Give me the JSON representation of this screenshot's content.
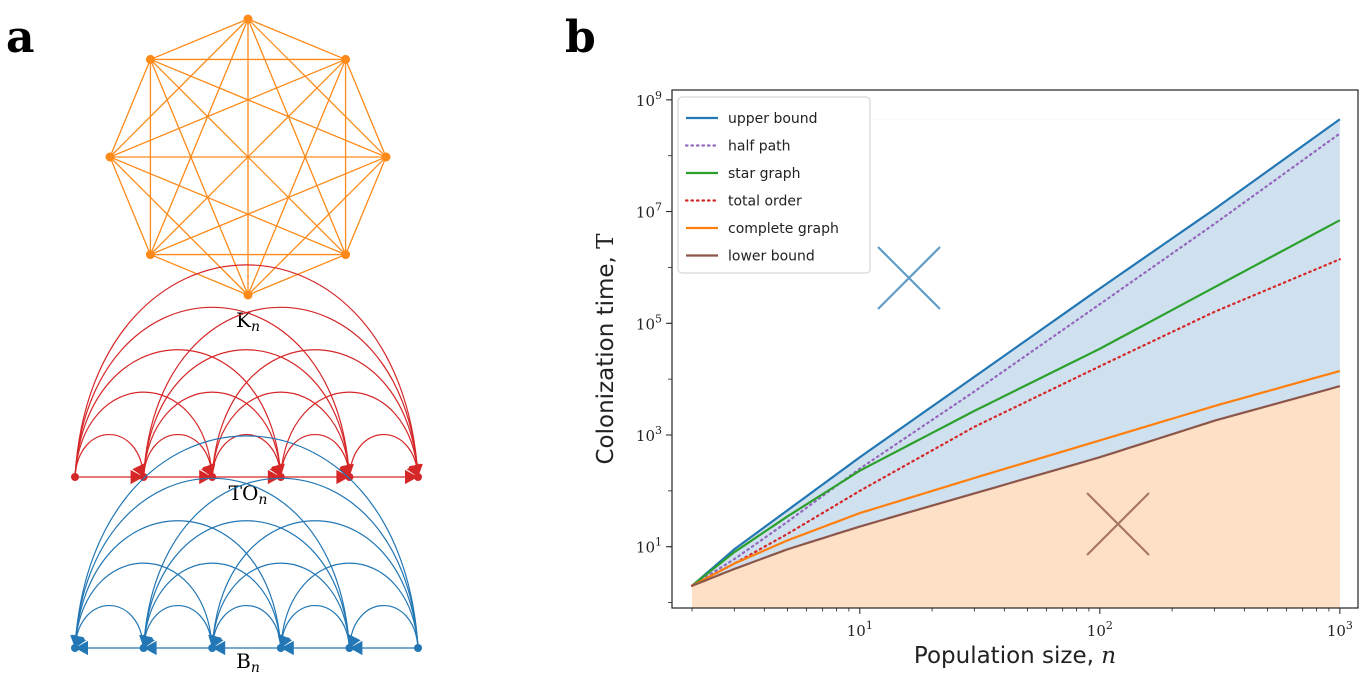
{
  "panels": {
    "a": "a",
    "b": "b"
  },
  "colors": {
    "complete": "#ff8a1a",
    "total_order": "#d62728",
    "burst": "#2277b4",
    "upper_fill": "#cfe1ef",
    "lower_fill": "#fde0c5",
    "upper_cross": "#5d9bc9",
    "lower_cross": "#a57866"
  },
  "graphs": [
    {
      "key": "complete",
      "label_main": "K",
      "label_sub": "n",
      "nodes": 8
    },
    {
      "key": "total_order",
      "label_main": "TO",
      "label_sub": "n",
      "nodes": 6
    },
    {
      "key": "burst",
      "label_main": "B",
      "label_sub": "n",
      "nodes": 6
    }
  ],
  "chart_data": {
    "type": "line",
    "xscale": "log",
    "yscale": "log",
    "xlim": [
      1.65,
      1190
    ],
    "ylim": [
      0.8,
      1500000000
    ],
    "xlabel_main": "Population size, ",
    "xlabel_var": "n",
    "ylabel_main": "Colonization time, ",
    "ylabel_var": "T",
    "x_ticks": [
      {
        "value": 10,
        "exp": "1"
      },
      {
        "value": 100,
        "exp": "2"
      },
      {
        "value": 1000,
        "exp": "3"
      }
    ],
    "y_ticks": [
      {
        "value": 10,
        "exp": "1"
      },
      {
        "value": 1000,
        "exp": "3"
      },
      {
        "value": 100000,
        "exp": "5"
      },
      {
        "value": 10000000,
        "exp": "7"
      },
      {
        "value": 1000000000,
        "exp": "9"
      }
    ],
    "tick_base": "10",
    "legend_position": "upper-left",
    "series": [
      {
        "name": "upper bound",
        "color": "#2277b4",
        "dash": "solid",
        "x": [
          2,
          3,
          5,
          10,
          30,
          100,
          300,
          1000
        ],
        "y": [
          2,
          9,
          45,
          400,
          11000,
          420000,
          11000000,
          450000000
        ]
      },
      {
        "name": "half path",
        "color": "#9467bd",
        "dash": "dotted",
        "x": [
          2,
          3,
          5,
          10,
          30,
          100,
          300,
          1000
        ],
        "y": [
          2,
          6,
          28,
          250,
          6000,
          220000,
          6000000,
          250000000
        ]
      },
      {
        "name": "star graph",
        "color": "#2ca02c",
        "dash": "solid",
        "x": [
          2,
          3,
          5,
          10,
          30,
          100,
          300,
          1000
        ],
        "y": [
          2,
          8,
          35,
          230,
          2700,
          35000,
          440000,
          7000000
        ]
      },
      {
        "name": "total order",
        "color": "#d62728",
        "dash": "dotted",
        "x": [
          2,
          3,
          5,
          10,
          30,
          100,
          300,
          1000
        ],
        "y": [
          2,
          5,
          17,
          100,
          1400,
          17000,
          160000,
          1400000
        ]
      },
      {
        "name": "complete graph",
        "color": "#ff7f0e",
        "dash": "solid",
        "x": [
          2,
          3,
          5,
          10,
          30,
          100,
          300,
          1000
        ],
        "y": [
          2,
          5,
          13,
          40,
          170,
          800,
          3300,
          14000
        ]
      },
      {
        "name": "lower bound",
        "color": "#8c564b",
        "dash": "solid",
        "x": [
          2,
          3,
          5,
          10,
          30,
          100,
          300,
          1000
        ],
        "y": [
          2,
          4,
          9,
          23,
          90,
          400,
          1800,
          7500
        ]
      }
    ]
  }
}
